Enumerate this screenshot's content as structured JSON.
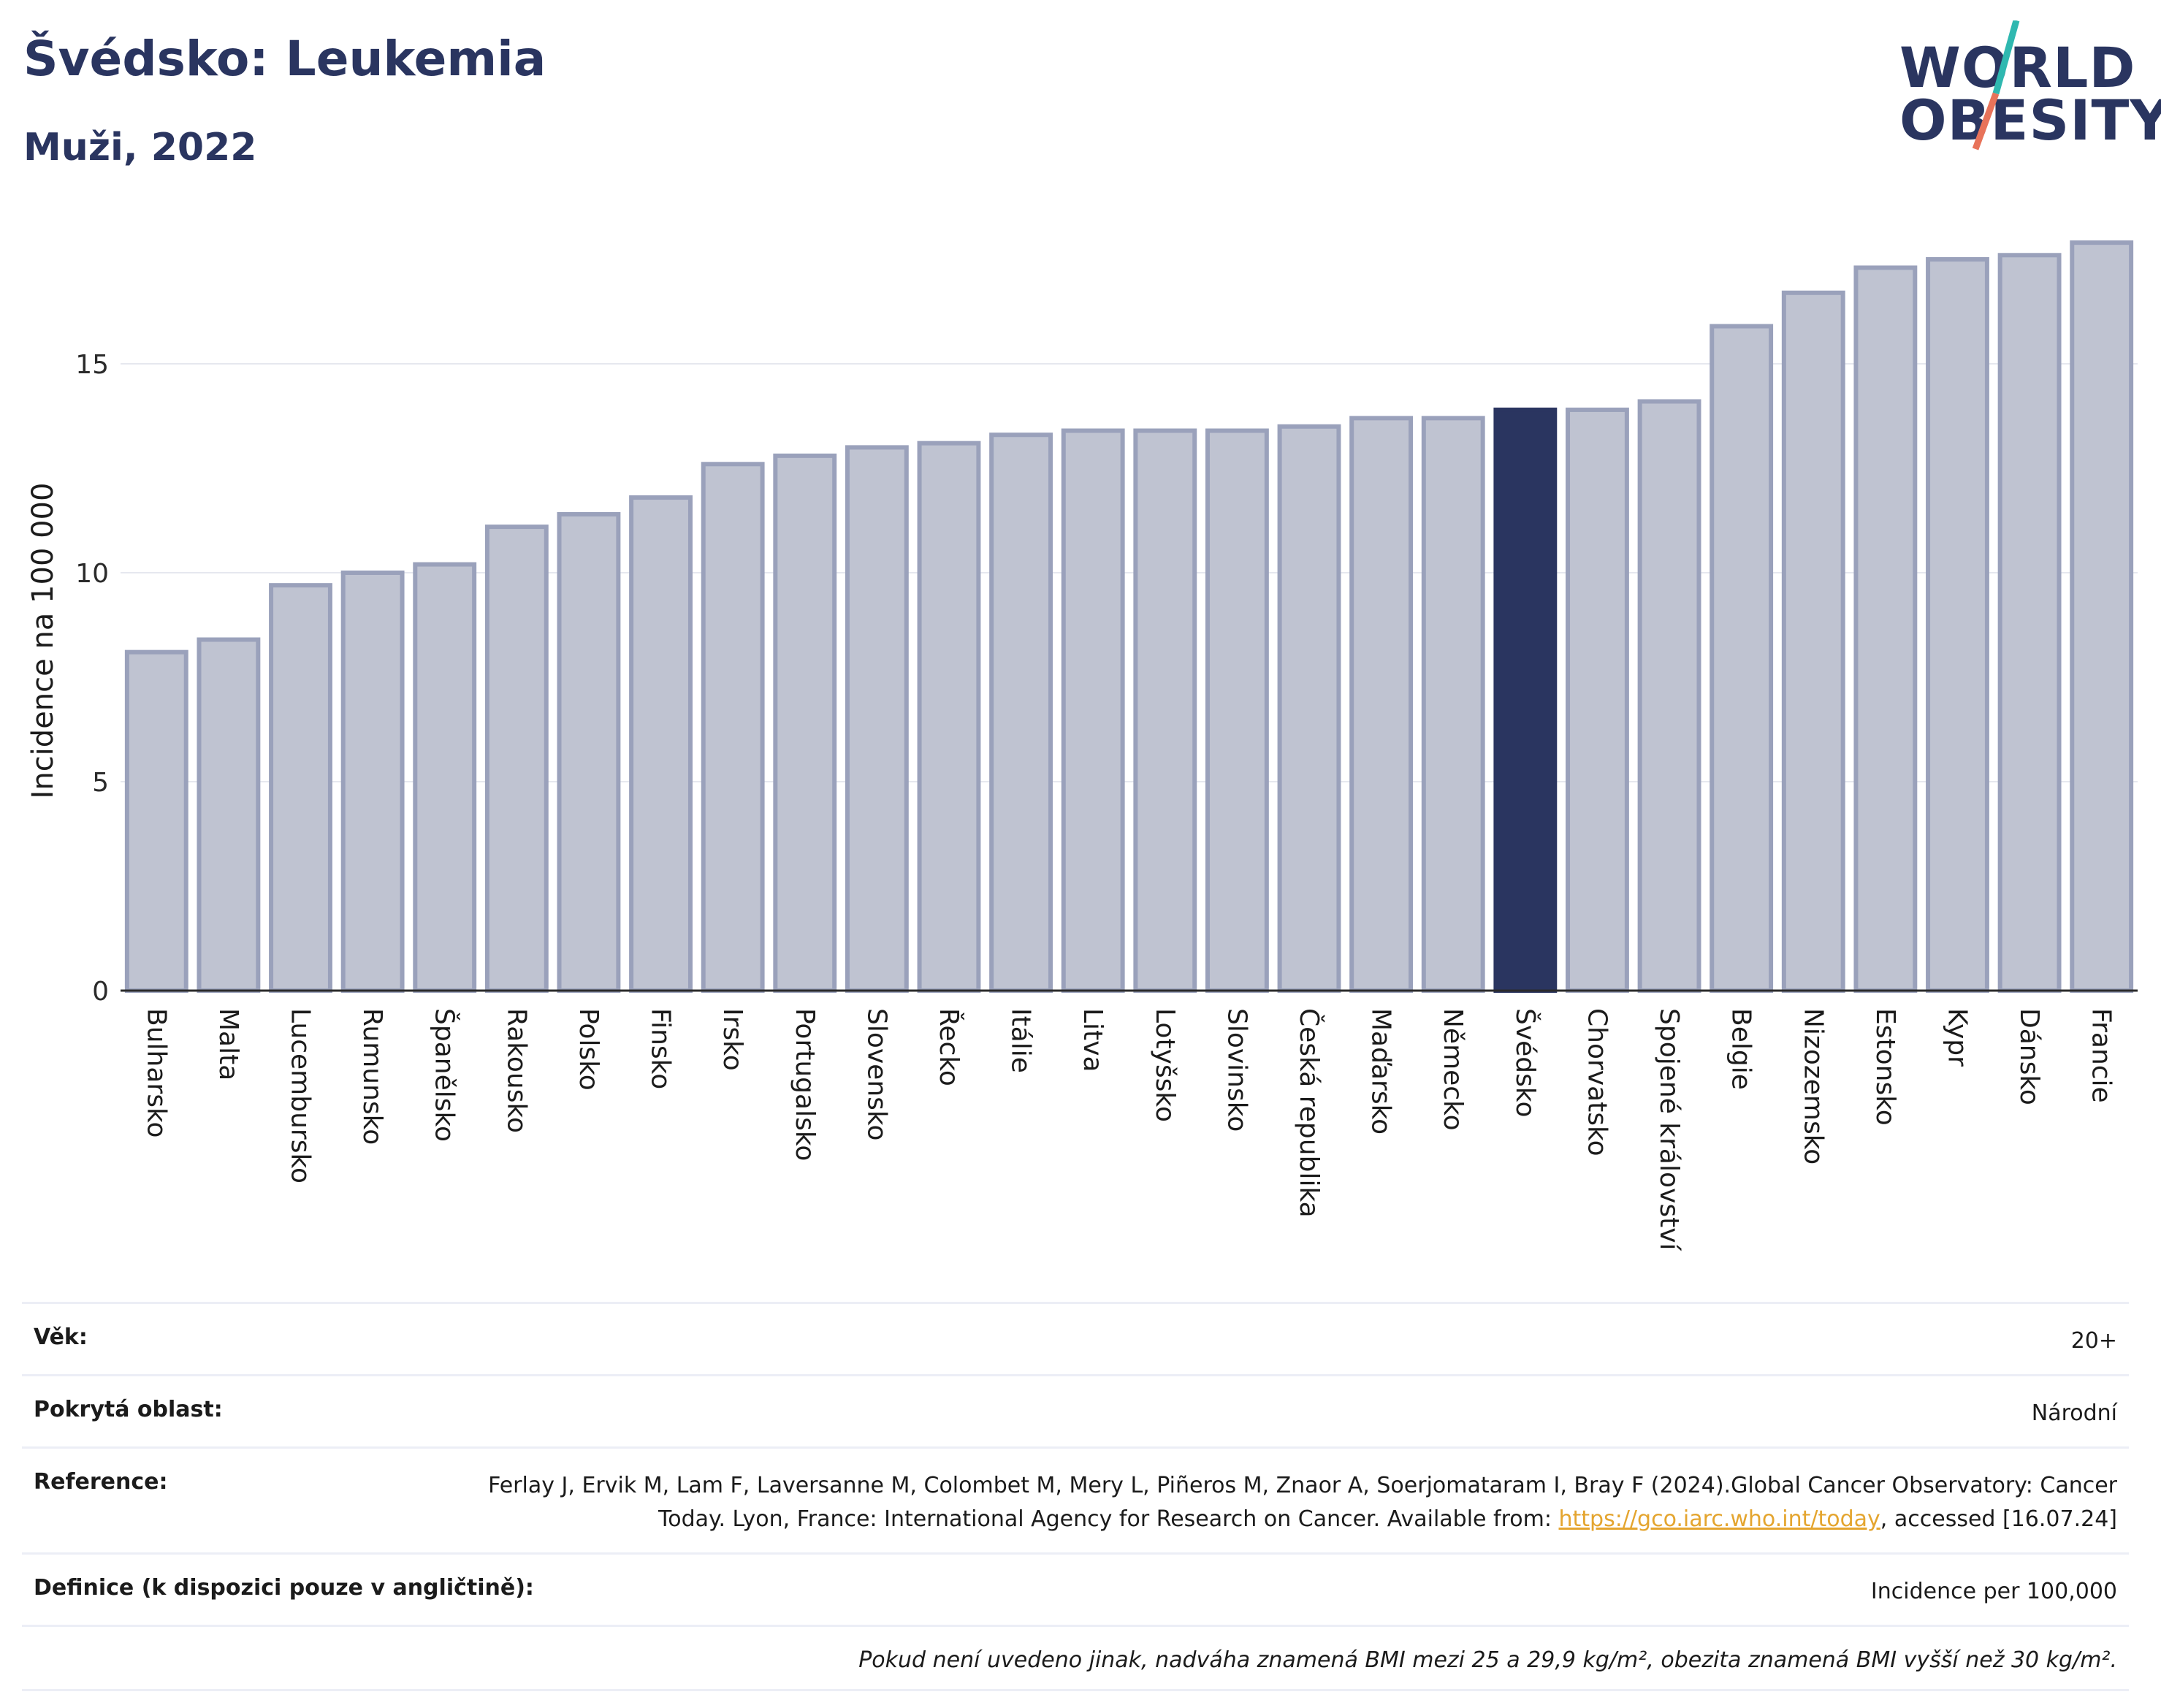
{
  "header": {
    "title": "Švédsko: Leukemia",
    "subtitle": "Muži, 2022"
  },
  "logo": {
    "line1": "WORLD",
    "line2": "OBESITY",
    "accent_colors": [
      "#2fb8b0",
      "#e8735a"
    ]
  },
  "colors": {
    "bar_default": "#bfc3d1",
    "bar_default_border": "#9aa1bb",
    "bar_highlight": "#2a3560",
    "grid": "#e6e8ef",
    "axis": "#2b2b2b"
  },
  "chart_data": {
    "type": "bar",
    "title": "Švédsko: Leukemia",
    "ylabel": "Incidence na 100 000",
    "ylim": [
      0,
      18.5
    ],
    "yticks": [
      0,
      5,
      10,
      15
    ],
    "grid": true,
    "highlight": "Švédsko",
    "categories": [
      "Bulharsko",
      "Malta",
      "Lucembursko",
      "Rumunsko",
      "Španělsko",
      "Rakousko",
      "Polsko",
      "Finsko",
      "Irsko",
      "Portugalsko",
      "Slovensko",
      "Řecko",
      "Itálie",
      "Litva",
      "Lotyšsko",
      "Slovinsko",
      "Česká republika",
      "Maďarsko",
      "Německo",
      "Švédsko",
      "Chorvatsko",
      "Spojené království",
      "Belgie",
      "Nizozemsko",
      "Estonsko",
      "Kypr",
      "Dánsko",
      "Francie"
    ],
    "values": [
      8.1,
      8.4,
      9.7,
      10.0,
      10.2,
      11.1,
      11.4,
      11.8,
      12.6,
      12.8,
      13.0,
      13.1,
      13.3,
      13.4,
      13.4,
      13.4,
      13.5,
      13.7,
      13.7,
      13.9,
      13.9,
      14.1,
      15.9,
      16.7,
      17.3,
      17.5,
      17.6,
      17.9
    ]
  },
  "meta": {
    "age_label": "Věk:",
    "age_value": "20+",
    "area_label": "Pokrytá oblast:",
    "area_value": "Národní",
    "reference_label": "Reference:",
    "reference_text_1": "Ferlay J, Ervik M, Lam F, Laversanne M, Colombet M, Mery L, Piñeros M, Znaor A, Soerjomataram I, Bray F (2024).Global Cancer Observatory: Cancer Today. Lyon, France: International Agency for Research on Cancer. Available from: ",
    "reference_link": "https://gco.iarc.who.int/today",
    "reference_text_2": ", accessed [16.07.24]",
    "definition_label": "Definice (k dispozici pouze v angličtině):",
    "definition_value": "Incidence per 100,000",
    "note": "Pokud není uvedeno jinak, nadváha znamená BMI mezi 25 a 29,9 kg/m², obezita znamená BMI vyšší než 30 kg/m²."
  }
}
